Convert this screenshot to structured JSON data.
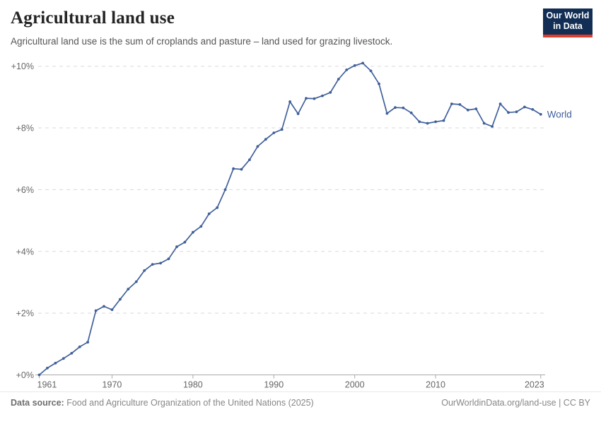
{
  "header": {
    "title": "Agricultural land use",
    "subtitle": "Agricultural land use is the sum of croplands and pasture – land used for grazing livestock.",
    "logo": {
      "line1": "Our World",
      "line2": "in Data",
      "bg_color": "#132e54",
      "bar_color": "#e03c2c",
      "text_color": "#ffffff"
    }
  },
  "chart_data": {
    "type": "line",
    "title": "Agricultural land use",
    "subtitle": "Agricultural land use is the sum of croplands and pasture – land used for grazing livestock.",
    "xlabel": "",
    "ylabel": "",
    "grid": "dashed horizontal",
    "legend_position": "end-of-line label",
    "xlim": [
      1961,
      2023
    ],
    "ylim": [
      0,
      10.5
    ],
    "yticks": [
      {
        "value": 0,
        "label": "+0%"
      },
      {
        "value": 2,
        "label": "+2%"
      },
      {
        "value": 4,
        "label": "+4%"
      },
      {
        "value": 6,
        "label": "+6%"
      },
      {
        "value": 8,
        "label": "+8%"
      },
      {
        "value": 10,
        "label": "+10%"
      }
    ],
    "xticks": [
      {
        "value": 1961,
        "label": "1961"
      },
      {
        "value": 1970,
        "label": "1970"
      },
      {
        "value": 1980,
        "label": "1980"
      },
      {
        "value": 1990,
        "label": "1990"
      },
      {
        "value": 2000,
        "label": "2000"
      },
      {
        "value": 2010,
        "label": "2010"
      },
      {
        "value": 2023,
        "label": "2023"
      }
    ],
    "series": [
      {
        "name": "World",
        "color": "#40609b",
        "marker": "circle",
        "x": [
          1961,
          1962,
          1963,
          1964,
          1965,
          1966,
          1967,
          1968,
          1969,
          1970,
          1971,
          1972,
          1973,
          1974,
          1975,
          1976,
          1977,
          1978,
          1979,
          1980,
          1981,
          1982,
          1983,
          1984,
          1985,
          1986,
          1987,
          1988,
          1989,
          1990,
          1991,
          1992,
          1993,
          1994,
          1995,
          1996,
          1997,
          1998,
          1999,
          2000,
          2001,
          2002,
          2003,
          2004,
          2005,
          2006,
          2007,
          2008,
          2009,
          2010,
          2011,
          2012,
          2013,
          2014,
          2015,
          2016,
          2017,
          2018,
          2019,
          2020,
          2021,
          2022,
          2023
        ],
        "values": [
          0.0,
          0.22,
          0.38,
          0.53,
          0.7,
          0.91,
          1.06,
          2.08,
          2.22,
          2.11,
          2.45,
          2.78,
          3.02,
          3.38,
          3.58,
          3.62,
          3.76,
          4.15,
          4.3,
          4.62,
          4.81,
          5.22,
          5.42,
          6.0,
          6.68,
          6.66,
          6.97,
          7.4,
          7.63,
          7.84,
          7.95,
          8.85,
          8.46,
          8.96,
          8.95,
          9.04,
          9.15,
          9.58,
          9.88,
          10.02,
          10.1,
          9.85,
          9.43,
          8.47,
          8.66,
          8.65,
          8.49,
          8.2,
          8.15,
          8.2,
          8.24,
          8.78,
          8.76,
          8.58,
          8.62,
          8.15,
          8.05,
          8.78,
          8.5,
          8.52,
          8.68,
          8.6,
          8.44
        ]
      }
    ]
  },
  "footer": {
    "source_label": "Data source:",
    "source_text": " Food and Agriculture Organization of the United Nations (2025)",
    "link_text": "OurWorldinData.org/land-use | CC BY"
  }
}
